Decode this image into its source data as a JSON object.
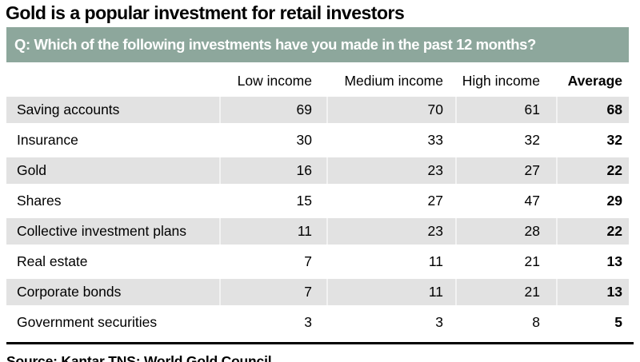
{
  "title": "Gold is a popular investment for retail investors",
  "banner": {
    "question": "Q: Which of the following investments have you made in the past 12 months?"
  },
  "table": {
    "columns": [
      "",
      "Low income",
      "Medium income",
      "High income",
      "Average"
    ],
    "rows": [
      {
        "label": "Saving accounts",
        "values": [
          69,
          70,
          61,
          68
        ]
      },
      {
        "label": "Insurance",
        "values": [
          30,
          33,
          32,
          32
        ]
      },
      {
        "label": "Gold",
        "values": [
          16,
          23,
          27,
          22
        ]
      },
      {
        "label": "Shares",
        "values": [
          15,
          27,
          47,
          29
        ]
      },
      {
        "label": "Collective investment plans",
        "values": [
          11,
          23,
          28,
          22
        ]
      },
      {
        "label": "Real estate",
        "values": [
          7,
          11,
          21,
          13
        ]
      },
      {
        "label": "Corporate bonds",
        "values": [
          7,
          11,
          21,
          13
        ]
      },
      {
        "label": "Government securities",
        "values": [
          3,
          3,
          8,
          5
        ]
      }
    ]
  },
  "source": "Source: Kantar TNS; World Gold Council",
  "colors": {
    "banner_bg": "#8DA79C",
    "banner_text": "#FFFFFF",
    "shaded_row": "#E2E2E2",
    "rule": "#000000",
    "title_text": "#000000"
  },
  "chart_data": {
    "type": "table",
    "title": "Gold is a popular investment for retail investors",
    "subtitle": "Q: Which of the following investments have you made in the past 12 months?",
    "categories": [
      "Saving accounts",
      "Insurance",
      "Gold",
      "Shares",
      "Collective investment plans",
      "Real estate",
      "Corporate bonds",
      "Government securities"
    ],
    "series": [
      {
        "name": "Low income",
        "values": [
          69,
          30,
          16,
          15,
          11,
          7,
          7,
          3
        ]
      },
      {
        "name": "Medium income",
        "values": [
          70,
          33,
          23,
          27,
          23,
          11,
          11,
          3
        ]
      },
      {
        "name": "High income",
        "values": [
          61,
          32,
          27,
          47,
          28,
          21,
          21,
          8
        ]
      },
      {
        "name": "Average",
        "values": [
          68,
          32,
          22,
          29,
          22,
          13,
          13,
          5
        ]
      }
    ],
    "source": "Source: Kantar TNS; World Gold Council",
    "layout": {
      "shaded_rows": [
        0,
        2,
        4,
        6
      ],
      "value_alignment": "right",
      "average_column_bold": true
    }
  }
}
